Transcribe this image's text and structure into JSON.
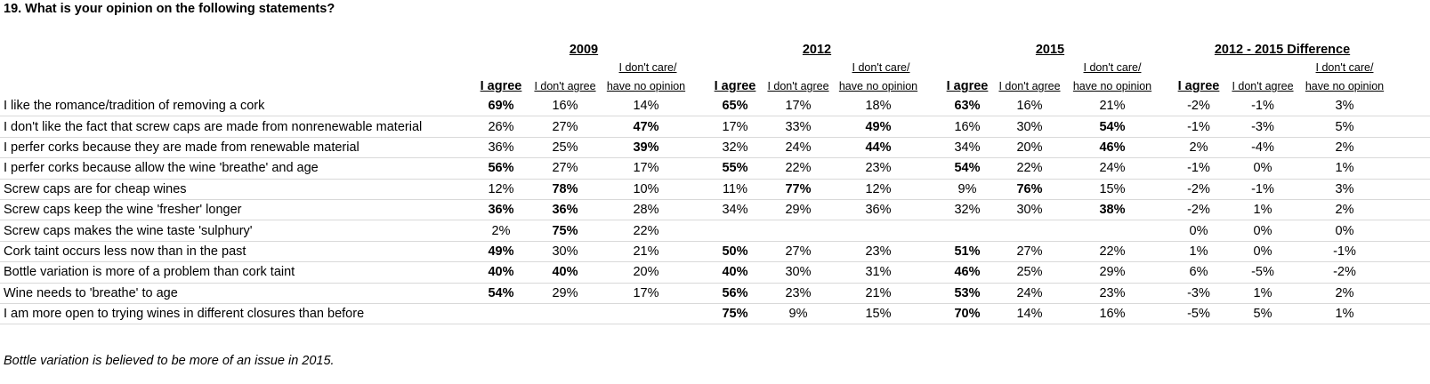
{
  "title": "19. What is your opinion on the following statements?",
  "groups": [
    "2009",
    "2012",
    "2015",
    "2012 - 2015 Difference"
  ],
  "subheader_top": "I don't care/",
  "column_headers": [
    "I agree",
    "I don't agree",
    "have no opinion"
  ],
  "rows": [
    {
      "label": "I like the romance/tradition of removing a cork",
      "values": [
        "69%",
        "16%",
        "14%",
        "65%",
        "17%",
        "18%",
        "63%",
        "16%",
        "21%",
        "-2%",
        "-1%",
        "3%"
      ],
      "bold": [
        0,
        3,
        6
      ]
    },
    {
      "label": "I don't like the fact that screw caps are made from nonrenewable material",
      "values": [
        "26%",
        "27%",
        "47%",
        "17%",
        "33%",
        "49%",
        "16%",
        "30%",
        "54%",
        "-1%",
        "-3%",
        "5%"
      ],
      "bold": [
        2,
        5,
        8
      ]
    },
    {
      "label": "I perfer corks because they are made from renewable material",
      "values": [
        "36%",
        "25%",
        "39%",
        "32%",
        "24%",
        "44%",
        "34%",
        "20%",
        "46%",
        "2%",
        "-4%",
        "2%"
      ],
      "bold": [
        2,
        5,
        8
      ]
    },
    {
      "label": "I perfer corks because allow the wine 'breathe' and age",
      "values": [
        "56%",
        "27%",
        "17%",
        "55%",
        "22%",
        "23%",
        "54%",
        "22%",
        "24%",
        "-1%",
        "0%",
        "1%"
      ],
      "bold": [
        0,
        3,
        6
      ]
    },
    {
      "label": "Screw caps are for cheap wines",
      "values": [
        "12%",
        "78%",
        "10%",
        "11%",
        "77%",
        "12%",
        "9%",
        "76%",
        "15%",
        "-2%",
        "-1%",
        "3%"
      ],
      "bold": [
        1,
        4,
        7
      ]
    },
    {
      "label": "Screw caps keep the wine 'fresher' longer",
      "values": [
        "36%",
        "36%",
        "28%",
        "34%",
        "29%",
        "36%",
        "32%",
        "30%",
        "38%",
        "-2%",
        "1%",
        "2%"
      ],
      "bold": [
        0,
        1,
        8
      ]
    },
    {
      "label": "Screw caps makes the wine taste 'sulphury'",
      "values": [
        "2%",
        "75%",
        "22%",
        "",
        "",
        "",
        "",
        "",
        "",
        "0%",
        "0%",
        "0%"
      ],
      "bold": [
        1
      ]
    },
    {
      "label": "Cork taint occurs less now than in the past",
      "values": [
        "49%",
        "30%",
        "21%",
        "50%",
        "27%",
        "23%",
        "51%",
        "27%",
        "22%",
        "1%",
        "0%",
        "-1%"
      ],
      "bold": [
        0,
        3,
        6
      ]
    },
    {
      "label": "Bottle variation is more of a problem than cork taint",
      "values": [
        "40%",
        "40%",
        "20%",
        "40%",
        "30%",
        "31%",
        "46%",
        "25%",
        "29%",
        "6%",
        "-5%",
        "-2%"
      ],
      "bold": [
        0,
        1,
        3,
        6
      ]
    },
    {
      "label": "Wine needs to 'breathe' to age",
      "values": [
        "54%",
        "29%",
        "17%",
        "56%",
        "23%",
        "21%",
        "53%",
        "24%",
        "23%",
        "-3%",
        "1%",
        "2%"
      ],
      "bold": [
        0,
        3,
        6
      ]
    },
    {
      "label": "I am more open to trying wines in different closures than before",
      "values": [
        "",
        "",
        "",
        "75%",
        "9%",
        "15%",
        "70%",
        "14%",
        "16%",
        "-5%",
        "5%",
        "1%"
      ],
      "bold": [
        3,
        6
      ]
    }
  ],
  "note": "Bottle variation is believed to be more of an issue in 2015."
}
